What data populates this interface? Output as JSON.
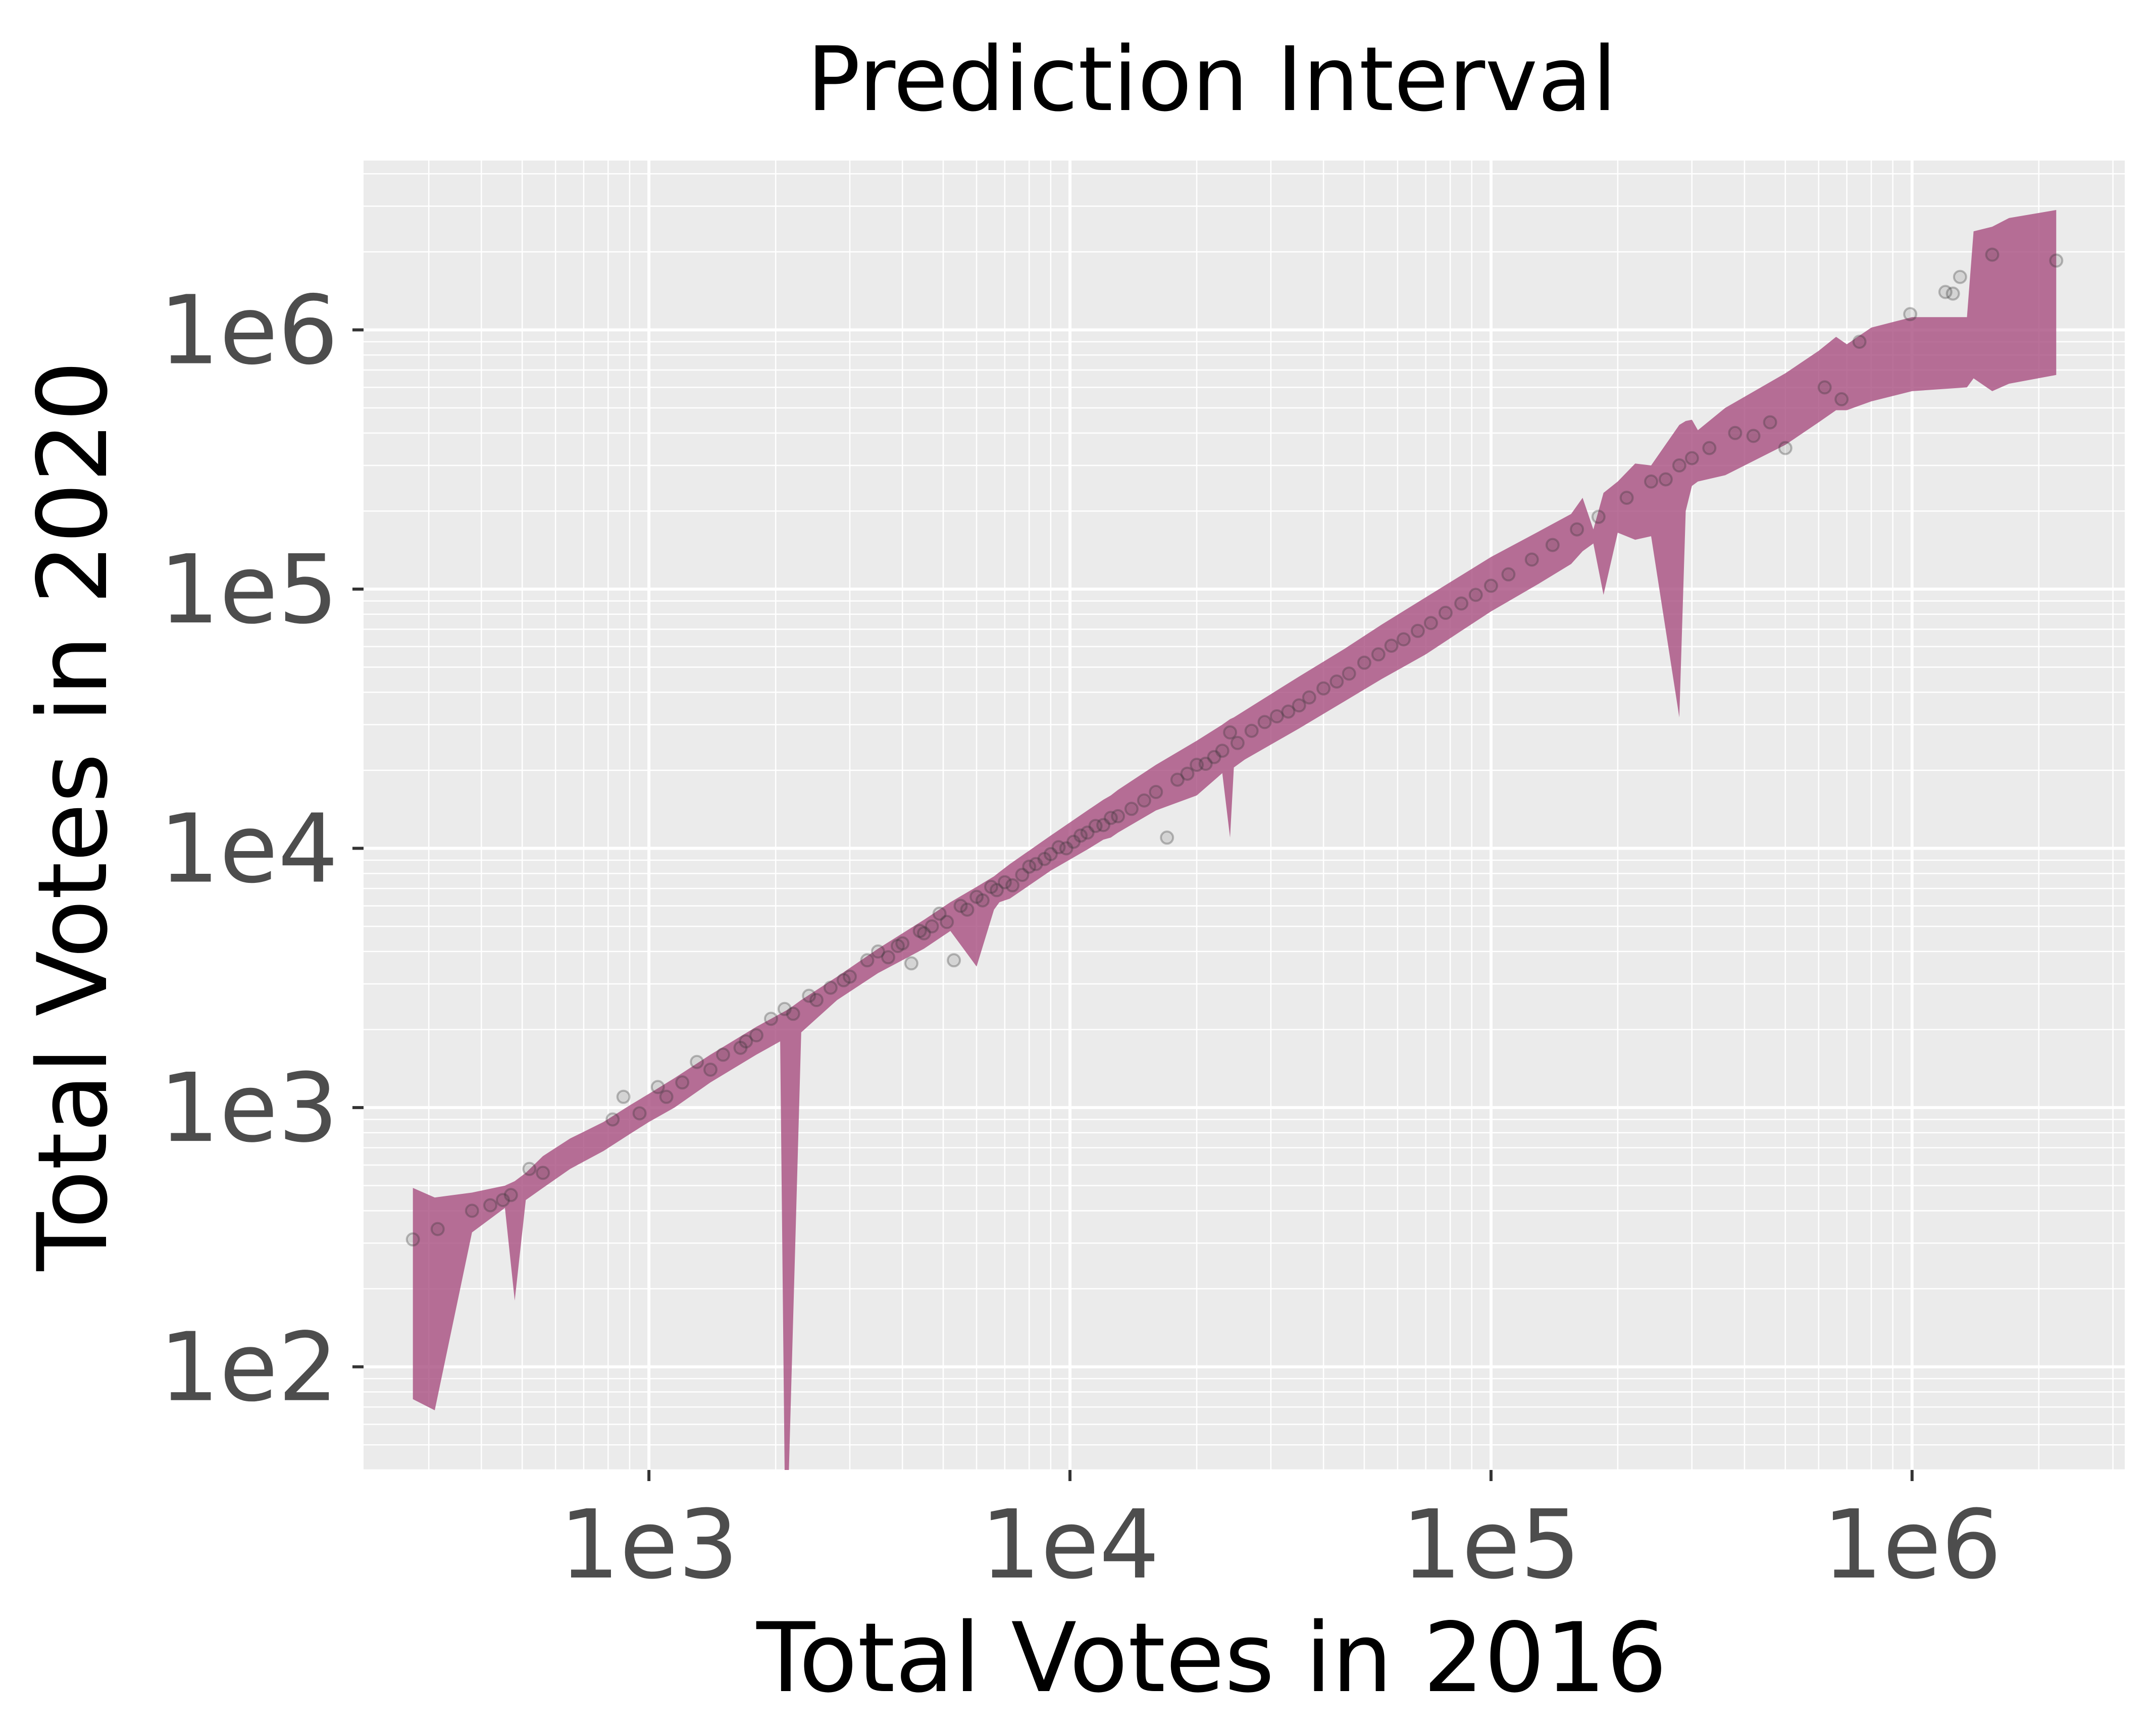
{
  "chart_data": {
    "type": "area",
    "title": "Prediction Interval",
    "xlabel": "Total Votes in 2016",
    "ylabel": "Total Votes in 2020",
    "x_scale": "log10",
    "y_scale": "log10",
    "xlim": [
      210,
      3200000
    ],
    "ylim": [
      40,
      4500000
    ],
    "x_ticks": [
      {
        "value": 1000,
        "label": "1e3"
      },
      {
        "value": 10000,
        "label": "1e4"
      },
      {
        "value": 100000,
        "label": "1e5"
      },
      {
        "value": 1000000,
        "label": "1e6"
      }
    ],
    "y_ticks": [
      {
        "value": 100,
        "label": "1e2"
      },
      {
        "value": 1000,
        "label": "1e3"
      },
      {
        "value": 10000,
        "label": "1e4"
      },
      {
        "value": 100000,
        "label": "1e5"
      },
      {
        "value": 1000000,
        "label": "1e6"
      }
    ],
    "grid": true,
    "band_color": "#a84d7f",
    "band_opacity": 0.8,
    "point_color": "#333333",
    "background_color": "#ebebeb",
    "band": {
      "x": [
        275,
        310,
        380,
        455,
        480,
        510,
        560,
        650,
        780,
        900,
        1000,
        1150,
        1400,
        1800,
        2050,
        2100,
        2150,
        2300,
        2800,
        3500,
        4500,
        5200,
        6000,
        6600,
        6800,
        7200,
        9000,
        11000,
        12000,
        12500,
        13000,
        16000,
        20000,
        23000,
        24000,
        24500,
        26000,
        35000,
        45000,
        55000,
        70000,
        85000,
        100000,
        130000,
        155000,
        165000,
        175000,
        185000,
        200000,
        220000,
        240000,
        280000,
        290000,
        300000,
        310000,
        360000,
        500000,
        600000,
        660000,
        700000,
        800000,
        1000000,
        1350000,
        1400000,
        1550000,
        1700000,
        2200000
      ],
      "upper": [
        490,
        450,
        470,
        500,
        520,
        560,
        650,
        760,
        880,
        1020,
        1130,
        1300,
        1600,
        2050,
        2300,
        2350,
        2400,
        2600,
        3200,
        4100,
        5300,
        6200,
        7100,
        7800,
        8100,
        8700,
        11200,
        14000,
        15400,
        16000,
        16800,
        21000,
        26000,
        30000,
        31500,
        32000,
        34000,
        46000,
        59000,
        73000,
        93000,
        113000,
        133000,
        167000,
        195000,
        225000,
        170000,
        235000,
        260000,
        305000,
        300000,
        430000,
        445000,
        450000,
        410000,
        500000,
        680000,
        830000,
        940000,
        880000,
        1020000,
        1120000,
        1120000,
        2400000,
        2500000,
        2700000,
        2900000
      ],
      "lower": [
        75,
        68,
        330,
        410,
        180,
        440,
        490,
        580,
        680,
        790,
        880,
        1000,
        1250,
        1600,
        1800,
        40,
        40,
        1950,
        2600,
        3300,
        4100,
        4800,
        3500,
        5800,
        6200,
        6400,
        8200,
        9900,
        10800,
        11000,
        11500,
        14000,
        16000,
        19500,
        11000,
        20500,
        22000,
        29000,
        37000,
        45000,
        56000,
        69000,
        82000,
        105000,
        125000,
        140000,
        150000,
        95000,
        165000,
        155000,
        160000,
        32000,
        200000,
        250000,
        260000,
        275000,
        360000,
        440000,
        490000,
        490000,
        530000,
        580000,
        600000,
        650000,
        580000,
        620000,
        670000
      ]
    },
    "points": {
      "x": [
        275,
        315,
        380,
        420,
        450,
        470,
        520,
        560,
        820,
        870,
        950,
        1050,
        1100,
        1200,
        1300,
        1400,
        1500,
        1650,
        1700,
        1800,
        1950,
        2100,
        2200,
        2400,
        2500,
        2700,
        2900,
        3000,
        3300,
        3500,
        3700,
        3900,
        4000,
        4200,
        4400,
        4500,
        4700,
        4900,
        5100,
        5300,
        5500,
        5700,
        6000,
        6200,
        6500,
        6700,
        7000,
        7300,
        7700,
        8000,
        8300,
        8700,
        9000,
        9400,
        9800,
        10200,
        10600,
        11000,
        11500,
        12000,
        12500,
        13000,
        14000,
        15000,
        16000,
        17000,
        18000,
        19000,
        20000,
        21000,
        22000,
        23000,
        24000,
        25000,
        27000,
        29000,
        31000,
        33000,
        35000,
        37000,
        40000,
        43000,
        46000,
        50000,
        54000,
        58000,
        62000,
        67000,
        72000,
        78000,
        85000,
        92000,
        100000,
        110000,
        125000,
        140000,
        160000,
        180000,
        210000,
        240000,
        260000,
        280000,
        300000,
        330000,
        380000,
        420000,
        460000,
        500000,
        620000,
        680000,
        750000,
        990000,
        1200000,
        1250000,
        1300000,
        1550000,
        2200000
      ],
      "y": [
        310,
        340,
        400,
        420,
        440,
        460,
        580,
        560,
        900,
        1100,
        950,
        1200,
        1100,
        1250,
        1500,
        1400,
        1600,
        1700,
        1800,
        1900,
        2200,
        2400,
        2300,
        2700,
        2600,
        2900,
        3100,
        3200,
        3700,
        4000,
        3800,
        4200,
        4300,
        3600,
        4800,
        4700,
        5000,
        5600,
        5200,
        3700,
        6000,
        5800,
        6500,
        6300,
        7100,
        6900,
        7400,
        7200,
        7900,
        8500,
        8700,
        9100,
        9500,
        10100,
        10000,
        10600,
        11200,
        11500,
        12200,
        12300,
        13100,
        13300,
        14200,
        15300,
        16500,
        11000,
        18400,
        19400,
        21000,
        21200,
        22500,
        23800,
        28000,
        25500,
        28400,
        30700,
        32300,
        33700,
        35600,
        38200,
        41400,
        44000,
        47200,
        52000,
        56000,
        60500,
        64000,
        69000,
        74000,
        81000,
        88000,
        95000,
        103000,
        114000,
        130000,
        148000,
        170000,
        190000,
        225000,
        260000,
        265000,
        300000,
        320000,
        350000,
        400000,
        390000,
        440000,
        350000,
        600000,
        540000,
        900000,
        1150000,
        1400000,
        1380000,
        1600000,
        1950000,
        1850000
      ]
    }
  }
}
